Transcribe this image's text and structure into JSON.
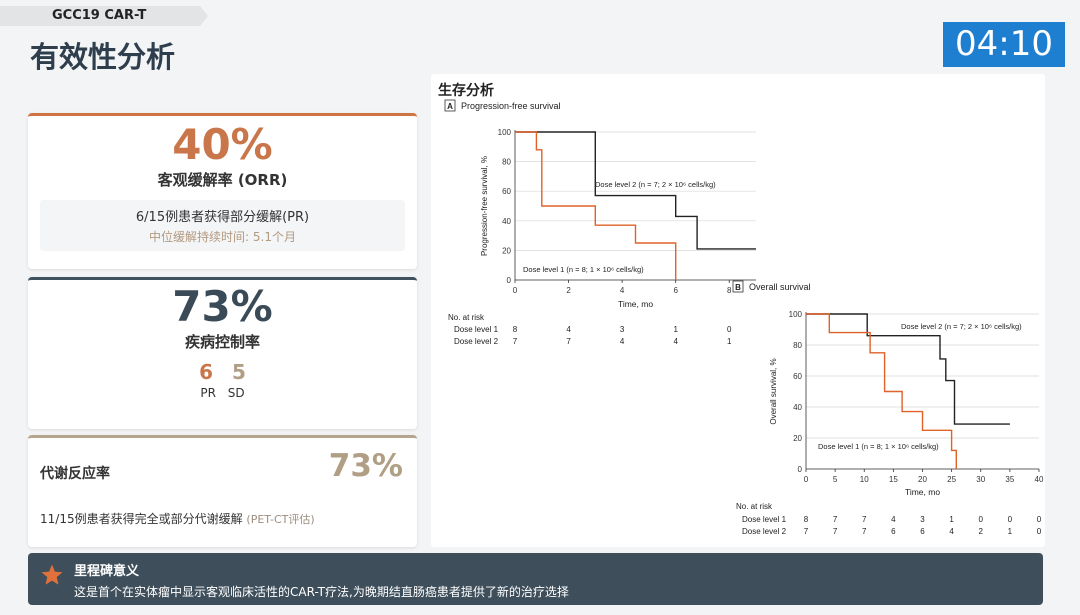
{
  "header": {
    "tag": "GCC19 CAR-T",
    "title": "有效性分析",
    "timer": "04:10"
  },
  "orr": {
    "value": "40%",
    "label": "客观缓解率 (ORR)",
    "detail": "6/15例患者获得部分缓解(PR)",
    "duration": "中位缓解持续时间: 5.1个月"
  },
  "dcr": {
    "value": "73%",
    "label": "疾病控制率",
    "pr_count": "6",
    "sd_count": "5",
    "pr_label": "PR",
    "sd_label": "SD"
  },
  "mrr": {
    "label": "代谢反应率",
    "value": "73%",
    "detail": "11/15例患者获得完全或部分代谢缓解",
    "note": "(PET-CT评估)"
  },
  "survival": {
    "title": "生存分析"
  },
  "chart_data": [
    {
      "type": "line",
      "panel": "A",
      "title": "Progression-free survival",
      "xlabel": "Time, mo",
      "ylabel": "Progression-free survival, %",
      "xlim": [
        0,
        9
      ],
      "ylim": [
        0,
        100
      ],
      "xticks": [
        0,
        2,
        4,
        6,
        8
      ],
      "yticks": [
        0,
        20,
        40,
        60,
        80,
        100
      ],
      "series": [
        {
          "name": "Dose level 2 (n = 7; 2 × 10⁶ cells/kg)",
          "color": "#222222",
          "x": [
            0,
            3,
            3,
            6,
            6,
            6.8,
            6.8,
            9
          ],
          "y": [
            100,
            100,
            57,
            57,
            43,
            43,
            21,
            21
          ]
        },
        {
          "name": "Dose level 1 (n = 8; 1 × 10⁶ cells/kg)",
          "color": "#e0612a",
          "x": [
            0,
            0.8,
            0.8,
            1,
            1,
            3,
            3,
            4.5,
            4.5,
            6,
            6
          ],
          "y": [
            100,
            100,
            88,
            88,
            50,
            50,
            37,
            37,
            25,
            25,
            0
          ]
        }
      ],
      "risk_table": {
        "header": "No. at risk",
        "rows": [
          {
            "label": "Dose level 1",
            "values": [
              "8",
              "4",
              "3",
              "1",
              "0"
            ]
          },
          {
            "label": "Dose level 2",
            "values": [
              "7",
              "7",
              "4",
              "4",
              "1"
            ]
          }
        ]
      }
    },
    {
      "type": "line",
      "panel": "B",
      "title": "Overall survival",
      "xlabel": "Time, mo",
      "ylabel": "Overall survival, %",
      "xlim": [
        0,
        40
      ],
      "ylim": [
        0,
        100
      ],
      "xticks": [
        0,
        5,
        10,
        15,
        20,
        25,
        30,
        35,
        40
      ],
      "yticks": [
        0,
        20,
        40,
        60,
        80,
        100
      ],
      "series": [
        {
          "name": "Dose level 2 (n = 7; 2 × 10⁶ cells/kg)",
          "color": "#222222",
          "x": [
            0,
            10.5,
            10.5,
            23,
            23,
            24,
            24,
            25.5,
            25.5,
            35
          ],
          "y": [
            100,
            100,
            86,
            86,
            71,
            71,
            57,
            57,
            29,
            29
          ]
        },
        {
          "name": "Dose level 1 (n = 8; 1 × 10⁶ cells/kg)",
          "color": "#e0612a",
          "x": [
            0,
            4,
            4,
            11,
            11,
            13.5,
            13.5,
            16.5,
            16.5,
            20,
            20,
            25,
            25,
            25.8,
            25.8
          ],
          "y": [
            100,
            100,
            88,
            88,
            75,
            75,
            50,
            50,
            37,
            37,
            25,
            25,
            12,
            12,
            0
          ]
        }
      ],
      "risk_table": {
        "header": "No. at risk",
        "rows": [
          {
            "label": "Dose level 1",
            "values": [
              "8",
              "7",
              "7",
              "4",
              "3",
              "1",
              "0",
              "0",
              "0"
            ]
          },
          {
            "label": "Dose level 2",
            "values": [
              "7",
              "7",
              "7",
              "6",
              "6",
              "4",
              "2",
              "1",
              "0"
            ]
          }
        ]
      }
    }
  ],
  "milestone": {
    "title": "里程碑意义",
    "desc": "这是首个在实体瘤中显示客观临床活性的CAR-T疗法,为晚期结直肠癌患者提供了新的治疗选择",
    "icon": "star-icon"
  },
  "colors": {
    "accent_orange": "#c8764a",
    "navy": "#3e4e5b",
    "timer_blue": "#1e7fd1",
    "tan": "#b09e85"
  }
}
